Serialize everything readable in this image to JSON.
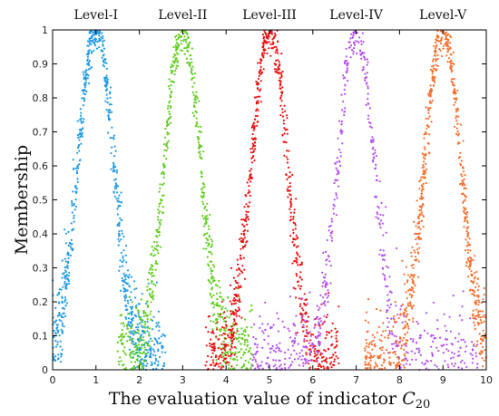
{
  "chart_data": {
    "type": "scatter",
    "xlabel": "The evaluation value of indicator ",
    "xlabel_italic": "C",
    "xlabel_subscript": "20",
    "ylabel": "Membership",
    "xlim": [
      0,
      10
    ],
    "ylim": [
      0,
      1
    ],
    "xticks": [
      "0",
      "1",
      "2",
      "3",
      "4",
      "5",
      "6",
      "7",
      "8",
      "9",
      "10"
    ],
    "yticks": [
      "0",
      "0.1",
      "0.2",
      "0.3",
      "0.4",
      "0.5",
      "0.6",
      "0.7",
      "0.8",
      "0.9",
      "1"
    ],
    "grid": false,
    "series": [
      {
        "name": "Level-I",
        "color": "#1f9ae6",
        "center": 1,
        "sigma": 0.5,
        "domain": [
          0,
          2.6
        ],
        "density": 900
      },
      {
        "name": "Level-II",
        "color": "#5fcc1c",
        "center": 3,
        "sigma": 0.5,
        "domain": [
          1.5,
          4.6
        ],
        "density": 900
      },
      {
        "name": "Level-III",
        "color": "#ee1111",
        "center": 5,
        "sigma": 0.5,
        "domain": [
          3.5,
          6.6
        ],
        "density": 900
      },
      {
        "name": "Level-IV",
        "color": "#b44ef0",
        "center": 7,
        "sigma": 0.5,
        "domain": [
          4.6,
          9.8
        ],
        "density": 900
      },
      {
        "name": "Level-V",
        "color": "#f56f2c",
        "center": 9,
        "sigma": 0.5,
        "domain": [
          7.2,
          10
        ],
        "density": 900
      }
    ]
  }
}
